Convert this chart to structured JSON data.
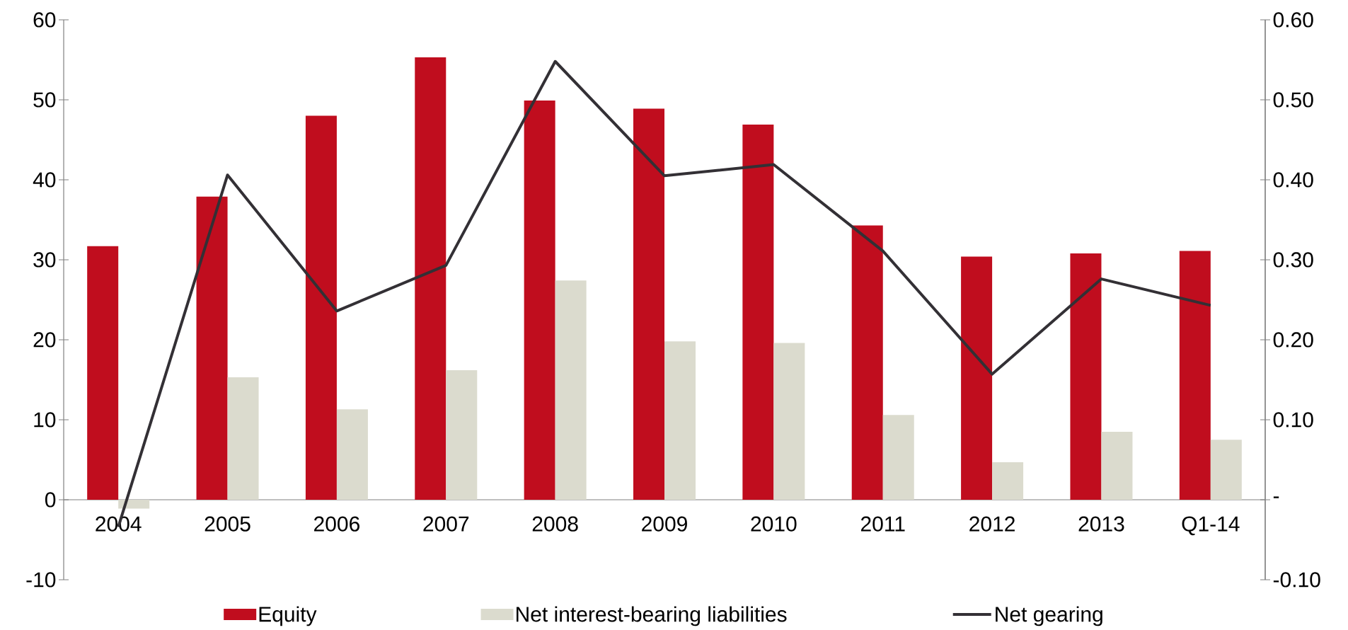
{
  "chart_data": {
    "type": "bar",
    "categories": [
      "2004",
      "2005",
      "2006",
      "2007",
      "2008",
      "2009",
      "2010",
      "2011",
      "2012",
      "2013",
      "Q1-14"
    ],
    "series": [
      {
        "name": "Equity",
        "color": "#c00d1e",
        "values": [
          31.7,
          37.9,
          48.0,
          55.3,
          49.9,
          48.9,
          46.9,
          34.3,
          30.4,
          30.8,
          31.1
        ]
      },
      {
        "name": "Net interest-bearing liabilities",
        "color": "#dbdbce",
        "values": [
          -1.1,
          15.3,
          11.3,
          16.2,
          27.4,
          19.8,
          19.6,
          10.6,
          4.7,
          8.5,
          7.5
        ]
      },
      {
        "name": "Net gearing",
        "type": "line",
        "axis": "y2",
        "color": "#333035",
        "values": [
          -0.034,
          0.406,
          0.236,
          0.293,
          0.548,
          0.405,
          0.419,
          0.311,
          0.157,
          0.276,
          0.243
        ]
      }
    ],
    "ylim": [
      -10,
      60
    ],
    "yticks": [
      -10,
      0,
      10,
      20,
      30,
      40,
      50,
      60
    ],
    "y2lim": [
      -0.1,
      0.6
    ],
    "y2ticks": [
      {
        "value": -0.1,
        "label": "-0.10"
      },
      {
        "value": 0,
        "label": "-"
      },
      {
        "value": 0.1,
        "label": "0.10"
      },
      {
        "value": 0.2,
        "label": "0.20"
      },
      {
        "value": 0.3,
        "label": "0.30"
      },
      {
        "value": 0.4,
        "label": "0.40"
      },
      {
        "value": 0.5,
        "label": "0.50"
      },
      {
        "value": 0.6,
        "label": "0.60"
      }
    ],
    "legend": "bottom"
  }
}
